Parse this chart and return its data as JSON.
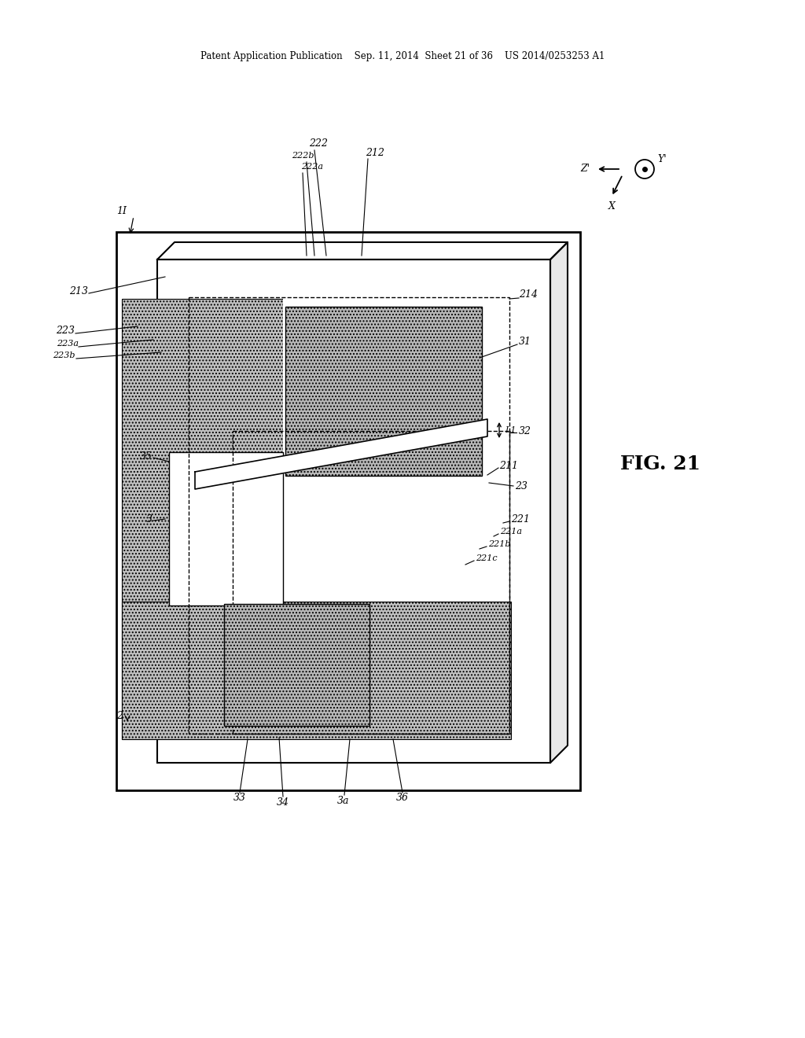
{
  "bg_color": "#ffffff",
  "header_text": "Patent Application Publication    Sep. 11, 2014  Sheet 21 of 36    US 2014/0253253 A1",
  "fig_label": "FIG. 21",
  "hatch_color_dark": "#c0c0c0",
  "hatch_color_light": "#d8d8d8"
}
